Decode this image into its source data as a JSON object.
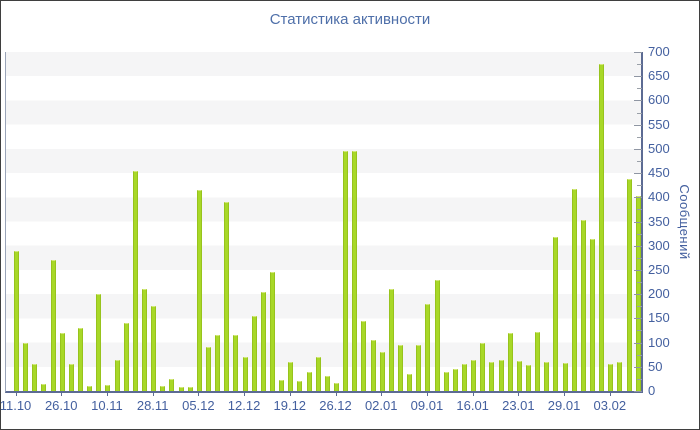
{
  "title": "Статистика активности",
  "y_axis": {
    "label": "Сообщений",
    "tick_labels": [
      "0",
      "50",
      "100",
      "150",
      "200",
      "250",
      "300",
      "350",
      "400",
      "450",
      "500",
      "550",
      "600",
      "650",
      "700"
    ],
    "major_step": 50,
    "minor_step": 25
  },
  "x_axis": {
    "tick_labels": [
      "11.10",
      "26.10",
      "10.11",
      "28.11",
      "05.12",
      "12.12",
      "19.12",
      "26.12",
      "02.01",
      "09.01",
      "16.01",
      "23.01",
      "29.01",
      "03.02"
    ],
    "label_every_n_bars": 5
  },
  "colors": {
    "bar": "#a8d827",
    "bar_edge": "#97c31d",
    "bar_top": "#d4e87e",
    "axis": "#5c6b93",
    "tick": "#9aa0a8",
    "labels": "#44609f",
    "title": "#4e6fa9",
    "stripe": "#f5f5f6",
    "frame_border": "#3f3f3f"
  },
  "chart_data": {
    "type": "bar",
    "title": "Статистика активности",
    "xlabel": "",
    "ylabel": "Сообщений",
    "ylim": [
      0,
      700
    ],
    "grid": "alternating horizontal stripes every 50 units, top band shaded",
    "legend": "none",
    "y_tick_step": 50,
    "x_tick_labels": [
      "11.10",
      "26.10",
      "10.11",
      "28.11",
      "05.12",
      "12.12",
      "19.12",
      "26.12",
      "02.01",
      "09.01",
      "16.01",
      "23.01",
      "29.01",
      "03.02"
    ],
    "x_tick_every_n_bars": 5,
    "values": [
      290,
      100,
      55,
      15,
      270,
      120,
      55,
      130,
      10,
      200,
      13,
      65,
      140,
      455,
      210,
      175,
      10,
      25,
      8,
      8,
      415,
      90,
      115,
      390,
      115,
      70,
      155,
      205,
      245,
      22,
      60,
      21,
      40,
      70,
      30,
      17,
      495,
      495,
      145,
      105,
      80,
      210,
      95,
      35,
      95,
      180,
      230,
      40,
      45,
      55,
      65,
      100,
      60,
      65,
      120,
      62,
      53,
      122,
      60,
      318,
      57,
      417,
      353,
      314,
      675,
      55,
      60,
      438,
      403
    ]
  }
}
